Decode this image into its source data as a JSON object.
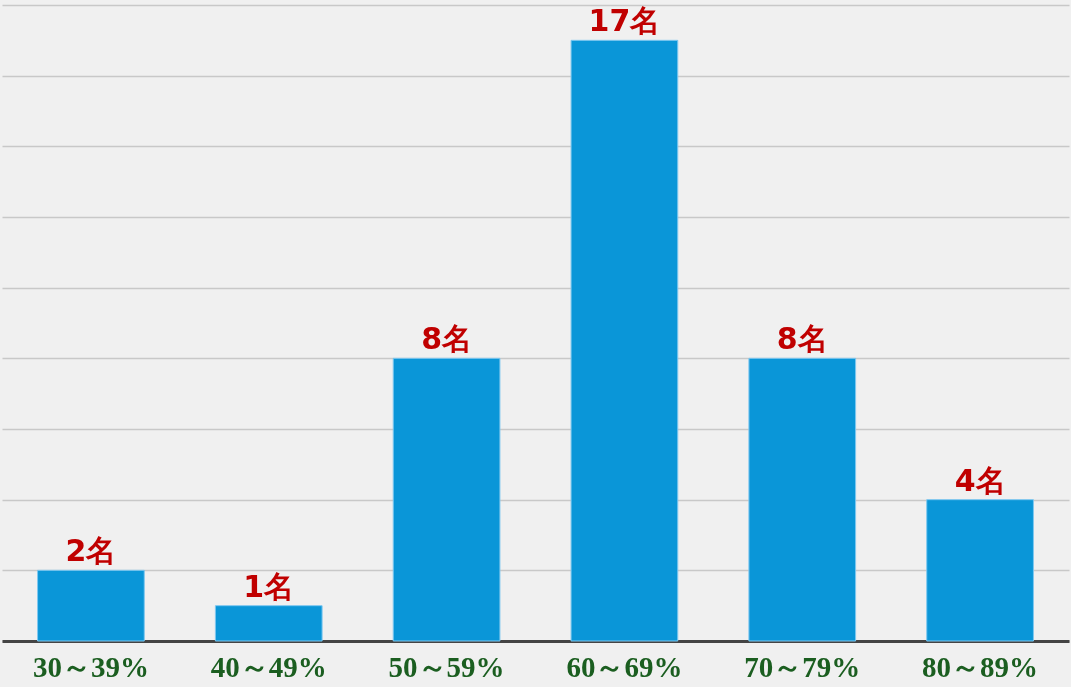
{
  "chart_data": {
    "type": "bar",
    "categories": [
      "30～39%",
      "40～49%",
      "50～59%",
      "60～69%",
      "70～79%",
      "80～89%"
    ],
    "values": [
      2,
      1,
      8,
      17,
      8,
      4
    ],
    "color": "#0a96d8",
    "value_labels": [
      "2名",
      "1名",
      "8名",
      "17名",
      "8名",
      "4名"
    ],
    "ylim": [
      0,
      18
    ],
    "yticks": [
      {
        "value": 0,
        "label": null
      },
      {
        "value": 2,
        "label": null
      },
      {
        "value": 4,
        "label": null
      },
      {
        "value": 6,
        "label": null
      },
      {
        "value": 8,
        "label": null
      },
      {
        "value": 10,
        "label": null
      },
      {
        "value": 12,
        "label": null
      },
      {
        "value": 14,
        "label": null
      },
      {
        "value": 16,
        "label": null
      },
      {
        "value": 18,
        "label": null
      }
    ],
    "grid": "y",
    "tick_labels": "x"
  }
}
